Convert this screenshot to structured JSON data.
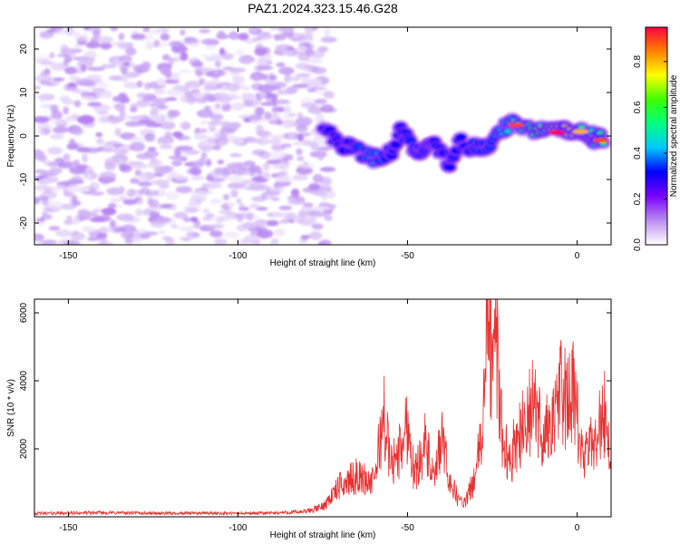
{
  "figure_title": "PAZ1.2024.323.15.46.G28",
  "chart_data": [
    {
      "type": "heatmap",
      "title": "PAZ1.2024.323.15.46.G28",
      "xlabel": "Height of straight line (km)",
      "ylabel": "Frequency (Hz)",
      "xlim": [
        -160,
        10
      ],
      "ylim": [
        -25,
        25
      ],
      "xticks": [
        -150,
        -100,
        -50,
        0
      ],
      "yticks": [
        -20,
        -10,
        0,
        10,
        20
      ],
      "xtick_labels": [
        "-150",
        "-100",
        "-50",
        "0"
      ],
      "ytick_labels": [
        "-20",
        "-10",
        "0",
        "10",
        "20"
      ],
      "colorbar": {
        "label": "Normalized spectral amplitude",
        "range": [
          0,
          0.95
        ],
        "ticks": [
          0.0,
          0.2,
          0.4,
          0.6,
          0.8
        ],
        "tick_labels": [
          "0.0",
          "0.2",
          "0.4",
          "0.6",
          "0.8"
        ],
        "colormap": [
          "#ffffff",
          "#b98cf0",
          "#7a00ff",
          "#0000ff",
          "#00c8ff",
          "#00ff80",
          "#40ff00",
          "#ffff00",
          "#ff8000",
          "#ff0040"
        ]
      },
      "noise_region": {
        "x_range": [
          -160,
          -73
        ],
        "y_range": [
          -25,
          25
        ],
        "amplitude_range": [
          0.02,
          0.12
        ]
      },
      "signal_track": [
        {
          "x": -75,
          "f": 1.5,
          "amp": 0.3
        },
        {
          "x": -70,
          "f": -1.5,
          "amp": 0.25
        },
        {
          "x": -65,
          "f": -3.5,
          "amp": 0.35
        },
        {
          "x": -60,
          "f": -5.5,
          "amp": 0.4
        },
        {
          "x": -55,
          "f": -4,
          "amp": 0.3
        },
        {
          "x": -52,
          "f": 1,
          "amp": 0.3
        },
        {
          "x": -48,
          "f": -2.5,
          "amp": 0.35
        },
        {
          "x": -45,
          "f": -4,
          "amp": 0.3
        },
        {
          "x": -42,
          "f": -1,
          "amp": 0.3
        },
        {
          "x": -38,
          "f": -7,
          "amp": 0.3
        },
        {
          "x": -35,
          "f": -1.5,
          "amp": 0.3
        },
        {
          "x": -30,
          "f": -3,
          "amp": 0.35
        },
        {
          "x": -25,
          "f": -2,
          "amp": 0.35
        },
        {
          "x": -20,
          "f": 3,
          "amp": 0.5
        },
        {
          "x": -15,
          "f": 1.5,
          "amp": 0.55
        },
        {
          "x": -10,
          "f": 1,
          "amp": 0.65
        },
        {
          "x": -5,
          "f": 1,
          "amp": 0.8
        },
        {
          "x": 0,
          "f": 1,
          "amp": 0.75
        },
        {
          "x": 3,
          "f": 1,
          "amp": 0.45
        },
        {
          "x": 5,
          "f": -0.5,
          "amp": 0.5
        },
        {
          "x": 8,
          "f": -0.5,
          "amp": 0.6
        }
      ],
      "signal_hotspots": [
        {
          "x": -18,
          "f": 2.5,
          "amp": 0.9
        },
        {
          "x": -6,
          "f": 0.8,
          "amp": 0.95
        },
        {
          "x": 1,
          "f": 1,
          "amp": 0.8
        },
        {
          "x": 7,
          "f": -1,
          "amp": 0.9
        }
      ]
    },
    {
      "type": "line",
      "xlabel": "Height of straight line (km)",
      "ylabel": "SNR (10 * v/v)",
      "xlim": [
        -160,
        10
      ],
      "ylim": [
        0,
        6400
      ],
      "xticks": [
        -150,
        -100,
        -50,
        0
      ],
      "yticks": [
        2000,
        4000,
        6000
      ],
      "xtick_labels": [
        "-150",
        "-100",
        "-50",
        "0"
      ],
      "ytick_labels": [
        "2000",
        "4000",
        "6000"
      ],
      "series_color": "#e83030",
      "series": [
        {
          "x": [
            -160,
            -150,
            -140,
            -130,
            -120,
            -110,
            -100,
            -90,
            -80,
            -75,
            -70,
            -65,
            -60,
            -57,
            -55,
            -52,
            -50,
            -48,
            -45,
            -42,
            -40,
            -38,
            -35,
            -33,
            -30,
            -28,
            -26,
            -25,
            -24,
            -23,
            -22,
            -20,
            -18,
            -15,
            -13,
            -10,
            -8,
            -6,
            -5,
            -3,
            -1,
            0,
            2,
            4,
            6,
            8,
            10
          ],
          "y": [
            100,
            110,
            120,
            110,
            100,
            110,
            100,
            110,
            150,
            300,
            900,
            1200,
            1000,
            3000,
            1500,
            2000,
            2800,
            1200,
            2200,
            1000,
            2400,
            1200,
            500,
            400,
            1200,
            2500,
            6200,
            3800,
            5600,
            3600,
            2500,
            1500,
            2300,
            2800,
            3300,
            2400,
            2700,
            3000,
            3900,
            3300,
            3600,
            2800,
            1600,
            2100,
            2500,
            3100,
            1500
          ]
        }
      ]
    }
  ]
}
